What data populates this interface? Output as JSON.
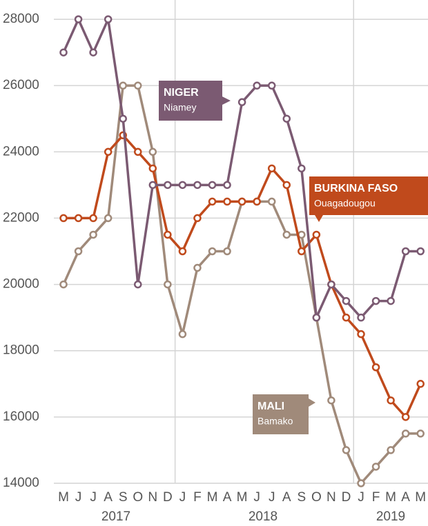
{
  "chart_data": {
    "type": "line",
    "categories": [
      "M",
      "J",
      "J",
      "A",
      "S",
      "O",
      "N",
      "D",
      "J",
      "F",
      "M",
      "A",
      "M",
      "J",
      "J",
      "A",
      "S",
      "O",
      "N",
      "D",
      "J",
      "F",
      "M",
      "A",
      "M"
    ],
    "year_labels": [
      "2017",
      "2018",
      "2019"
    ],
    "ylim": [
      14000,
      28000
    ],
    "yticks": [
      14000,
      16000,
      18000,
      20000,
      22000,
      24000,
      26000,
      28000
    ],
    "grid": true,
    "series": [
      {
        "name": "MALI",
        "city": "Bamako",
        "color": "#a08a7a",
        "values": [
          20000,
          21000,
          21500,
          22000,
          26000,
          26000,
          24000,
          20000,
          18500,
          20500,
          21000,
          21000,
          22500,
          22500,
          22500,
          21500,
          21500,
          19000,
          16500,
          15000,
          14000,
          14500,
          15000,
          15500,
          15500
        ]
      },
      {
        "name": "BURKINA FASO",
        "city": "Ouagadougou",
        "color": "#c04a1c",
        "values": [
          22000,
          22000,
          22000,
          24000,
          24500,
          24000,
          23500,
          21500,
          21000,
          22000,
          22500,
          22500,
          22500,
          22500,
          23500,
          23000,
          21000,
          21500,
          20000,
          19000,
          18500,
          17500,
          16500,
          16000,
          17000
        ]
      },
      {
        "name": "NIGER",
        "city": "Niamey",
        "color": "#7b5a72",
        "values": [
          27000,
          28000,
          27000,
          28000,
          25000,
          20000,
          23000,
          23000,
          23000,
          23000,
          23000,
          23000,
          25500,
          26000,
          26000,
          25000,
          23500,
          19000,
          20000,
          19500,
          19000,
          19500,
          19500,
          21000,
          21000
        ]
      }
    ]
  }
}
